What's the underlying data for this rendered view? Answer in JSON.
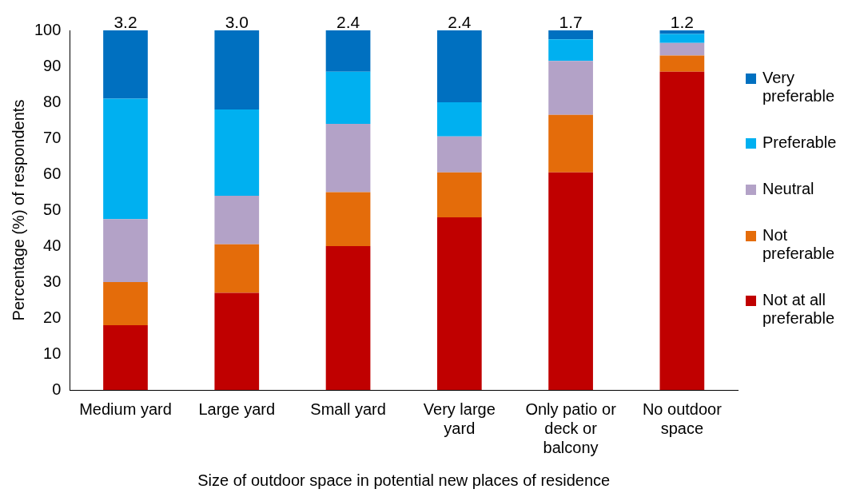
{
  "chart_data": {
    "type": "bar",
    "stacked": true,
    "xlabel": "Size of outdoor space in potential new places of residence",
    "ylabel": "Percentage (%) of respondents",
    "categories": [
      "Medium yard",
      "Large yard",
      "Small yard",
      "Very large yard",
      "Only patio or deck or balcony",
      "No outdoor space"
    ],
    "series": [
      {
        "name": "Not at all preferable",
        "color": "#c00000",
        "values": [
          18,
          27,
          40,
          48,
          60.5,
          88.5
        ]
      },
      {
        "name": "Not preferable",
        "color": "#e46c0a",
        "values": [
          12,
          13.5,
          15,
          12.5,
          16,
          4.5
        ]
      },
      {
        "name": "Neutral",
        "color": "#b3a2c7",
        "values": [
          17.5,
          13.5,
          19,
          10,
          15,
          3.5
        ]
      },
      {
        "name": "Preferable",
        "color": "#00b0f0",
        "values": [
          33.5,
          24,
          14.5,
          9.5,
          6,
          2.5
        ]
      },
      {
        "name": "Very preferable",
        "color": "#0070c0",
        "values": [
          19,
          22,
          11.5,
          20,
          2.5,
          1
        ]
      }
    ],
    "ylim": [
      0,
      100
    ],
    "yticks": [
      0,
      10,
      20,
      30,
      40,
      50,
      60,
      70,
      80,
      90,
      100
    ],
    "grid": false,
    "legend": "right",
    "annotations": [
      {
        "text": "3.2",
        "x": "Medium yard",
        "y": 100
      },
      {
        "text": "3.0",
        "x": "Large yard",
        "y": 100
      },
      {
        "text": "2.4",
        "x": "Small yard",
        "y": 100
      },
      {
        "text": "2.4",
        "x": "Very large yard",
        "y": 100
      },
      {
        "text": "1.7",
        "x": "Only patio or deck or balcony",
        "y": 100
      },
      {
        "text": "1.2",
        "x": "No outdoor space",
        "y": 100
      }
    ]
  }
}
